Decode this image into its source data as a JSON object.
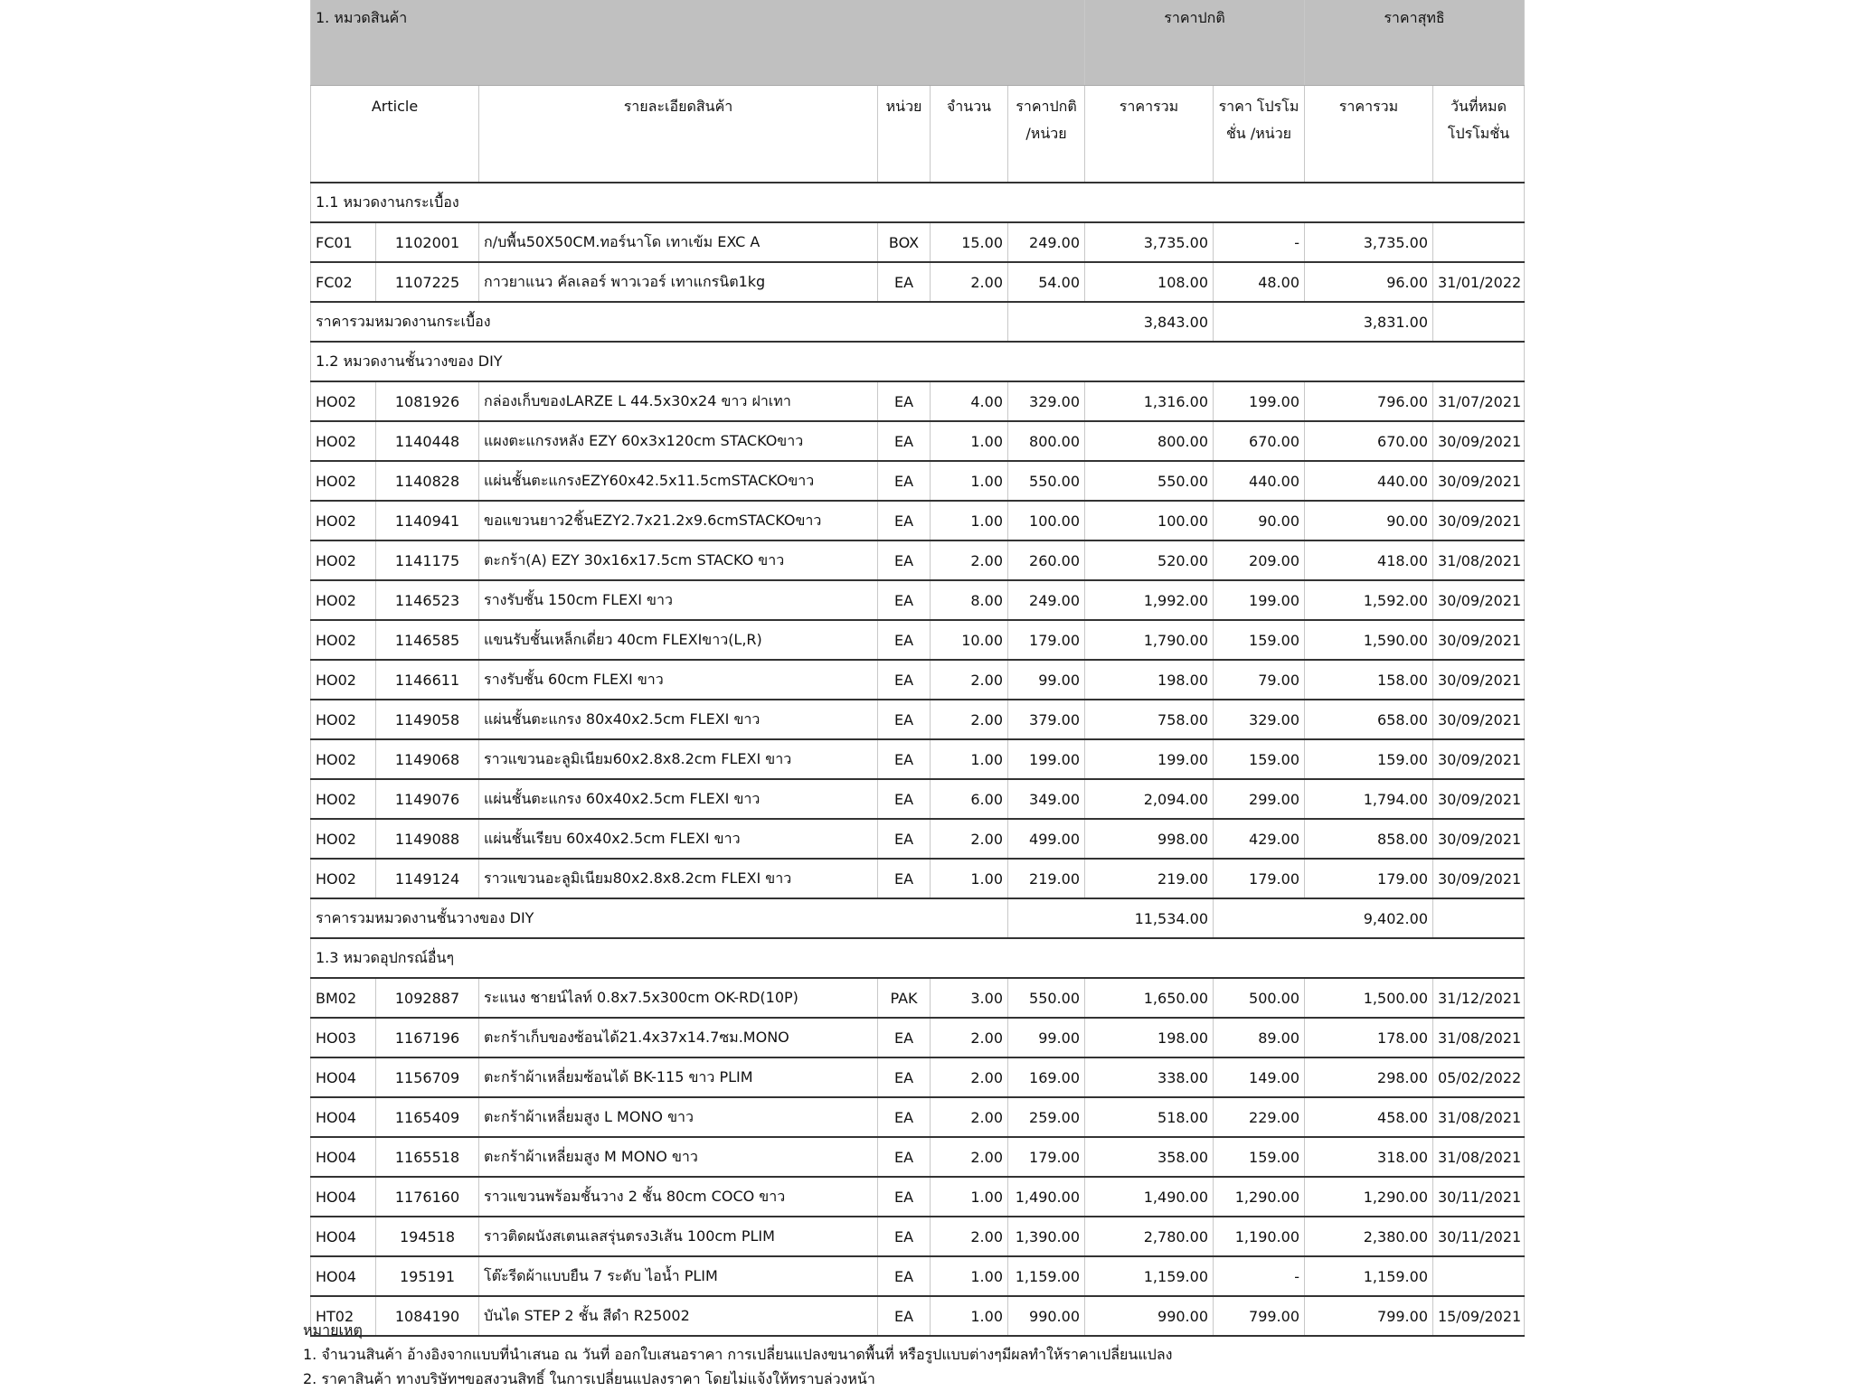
{
  "header": {
    "category": "1. หมวดสินค้า",
    "regular_price": "ราคาปกติ",
    "net_price": "ราคาสุทธิ"
  },
  "columns": {
    "article": "Article",
    "description": "รายละเอียดสินค้า",
    "unit": "หน่วย",
    "qty": "จำนวน",
    "unit_price": "ราคาปกติ /หน่วย",
    "total": "ราคารวม",
    "promo_price": "ราคา โปรโมชั่น /หน่วย",
    "net_total": "ราคารวม",
    "promo_end": "วันที่หมด โปรโมชั่น"
  },
  "sections": [
    {
      "title": "1.1 หมวดงานกระเบื้อง",
      "subtotal_label": "ราคารวมหมวดงานกระเบื้อง",
      "subtotal_regular": "3,843.00",
      "subtotal_net": "3,831.00",
      "items": [
        [
          "FC01",
          "1102001",
          "ก/บพื้น50X50CM.ทอร์นาโด เทาเข้ม EXC A",
          "BOX",
          "15.00",
          "249.00",
          "3,735.00",
          "-",
          "3,735.00",
          ""
        ],
        [
          "FC02",
          "1107225",
          "กาวยาแนว คัลเลอร์ พาวเวอร์ เทาแกรนิต1kg",
          "EA",
          "2.00",
          "54.00",
          "108.00",
          "48.00",
          "96.00",
          "31/01/2022"
        ]
      ]
    },
    {
      "title": "1.2 หมวดงานชั้นวางของ DIY",
      "subtotal_label": "ราคารวมหมวดงานชั้นวางของ DIY",
      "subtotal_regular": "11,534.00",
      "subtotal_net": "9,402.00",
      "items": [
        [
          "HO02",
          "1081926",
          "กล่องเก็บของLARZE L 44.5x30x24 ขาว ฝาเทา",
          "EA",
          "4.00",
          "329.00",
          "1,316.00",
          "199.00",
          "796.00",
          "31/07/2021"
        ],
        [
          "HO02",
          "1140448",
          "แผงตะแกรงหลัง EZY 60x3x120cm STACKOขาว",
          "EA",
          "1.00",
          "800.00",
          "800.00",
          "670.00",
          "670.00",
          "30/09/2021"
        ],
        [
          "HO02",
          "1140828",
          "แผ่นชั้นตะแกรงEZY60x42.5x11.5cmSTACKOขาว",
          "EA",
          "1.00",
          "550.00",
          "550.00",
          "440.00",
          "440.00",
          "30/09/2021"
        ],
        [
          "HO02",
          "1140941",
          "ขอแขวนยาว2ชิ้นEZY2.7x21.2x9.6cmSTACKOขาว",
          "EA",
          "1.00",
          "100.00",
          "100.00",
          "90.00",
          "90.00",
          "30/09/2021"
        ],
        [
          "HO02",
          "1141175",
          "ตะกร้า(A) EZY 30x16x17.5cm STACKO ขาว",
          "EA",
          "2.00",
          "260.00",
          "520.00",
          "209.00",
          "418.00",
          "31/08/2021"
        ],
        [
          "HO02",
          "1146523",
          "รางรับชั้น 150cm FLEXI ขาว",
          "EA",
          "8.00",
          "249.00",
          "1,992.00",
          "199.00",
          "1,592.00",
          "30/09/2021"
        ],
        [
          "HO02",
          "1146585",
          "แขนรับชั้นเหล็กเดี่ยว 40cm FLEXIขาว(L,R)",
          "EA",
          "10.00",
          "179.00",
          "1,790.00",
          "159.00",
          "1,590.00",
          "30/09/2021"
        ],
        [
          "HO02",
          "1146611",
          "รางรับชั้น 60cm FLEXI ขาว",
          "EA",
          "2.00",
          "99.00",
          "198.00",
          "79.00",
          "158.00",
          "30/09/2021"
        ],
        [
          "HO02",
          "1149058",
          "แผ่นชั้นตะแกรง 80x40x2.5cm FLEXI ขาว",
          "EA",
          "2.00",
          "379.00",
          "758.00",
          "329.00",
          "658.00",
          "30/09/2021"
        ],
        [
          "HO02",
          "1149068",
          "ราวแขวนอะลูมิเนียม60x2.8x8.2cm FLEXI ขาว",
          "EA",
          "1.00",
          "199.00",
          "199.00",
          "159.00",
          "159.00",
          "30/09/2021"
        ],
        [
          "HO02",
          "1149076",
          "แผ่นชั้นตะแกรง 60x40x2.5cm FLEXI ขาว",
          "EA",
          "6.00",
          "349.00",
          "2,094.00",
          "299.00",
          "1,794.00",
          "30/09/2021"
        ],
        [
          "HO02",
          "1149088",
          "แผ่นชั้นเรียบ 60x40x2.5cm FLEXI ขาว",
          "EA",
          "2.00",
          "499.00",
          "998.00",
          "429.00",
          "858.00",
          "30/09/2021"
        ],
        [
          "HO02",
          "1149124",
          "ราวแขวนอะลูมิเนียม80x2.8x8.2cm FLEXI ขาว",
          "EA",
          "1.00",
          "219.00",
          "219.00",
          "179.00",
          "179.00",
          "30/09/2021"
        ]
      ]
    },
    {
      "title": "1.3 หมวดอุปกรณ์อื่นๆ",
      "items": [
        [
          "BM02",
          "1092887",
          "ระแนง ชายน์ไลท์ 0.8x7.5x300cm OK-RD(10P)",
          "PAK",
          "3.00",
          "550.00",
          "1,650.00",
          "500.00",
          "1,500.00",
          "31/12/2021"
        ],
        [
          "HO03",
          "1167196",
          "ตะกร้าเก็บของซ้อนได้21.4x37x14.7ซม.MONO",
          "EA",
          "2.00",
          "99.00",
          "198.00",
          "89.00",
          "178.00",
          "31/08/2021"
        ],
        [
          "HO04",
          "1156709",
          "ตะกร้าผ้าเหลี่ยมซ้อนได้ BK-115 ขาว PLIM",
          "EA",
          "2.00",
          "169.00",
          "338.00",
          "149.00",
          "298.00",
          "05/02/2022"
        ],
        [
          "HO04",
          "1165409",
          "ตะกร้าผ้าเหลี่ยมสูง L MONO ขาว",
          "EA",
          "2.00",
          "259.00",
          "518.00",
          "229.00",
          "458.00",
          "31/08/2021"
        ],
        [
          "HO04",
          "1165518",
          "ตะกร้าผ้าเหลี่ยมสูง M MONO ขาว",
          "EA",
          "2.00",
          "179.00",
          "358.00",
          "159.00",
          "318.00",
          "31/08/2021"
        ],
        [
          "HO04",
          "1176160",
          "ราวแขวนพร้อมชั้นวาง 2 ชั้น 80cm COCO ขาว",
          "EA",
          "1.00",
          "1,490.00",
          "1,490.00",
          "1,290.00",
          "1,290.00",
          "30/11/2021"
        ],
        [
          "HO04",
          "194518",
          "ราวติดผนังสเตนเลสรุ่นตรง3เส้น 100cm PLIM",
          "EA",
          "2.00",
          "1,390.00",
          "2,780.00",
          "1,190.00",
          "2,380.00",
          "30/11/2021"
        ],
        [
          "HO04",
          "195191",
          "โต๊ะรีดผ้าแบบยืน 7 ระดับ ไอน้ำ PLIM",
          "EA",
          "1.00",
          "1,159.00",
          "1,159.00",
          "-",
          "1,159.00",
          ""
        ],
        [
          "HT02",
          "1084190",
          "บันได STEP 2 ชั้น สีดำ R25002",
          "EA",
          "1.00",
          "990.00",
          "990.00",
          "799.00",
          "799.00",
          "15/09/2021"
        ]
      ]
    }
  ],
  "notes": {
    "title": "หมายเหตุ",
    "items": [
      "1. จำนวนสินค้า อ้างอิงจากแบบที่นำเสนอ ณ วันที่ ออกใบเสนอราคา การเปลี่ยนแปลงขนาดพื้นที่ หรือรูปแบบต่างๆมีผลทำให้ราคาเปลี่ยนแปลง",
      "2. ราคาสินค้า ทางบริษัทฯขอสงวนสิทธิ์ ในการเปลี่ยนแปลงราคา โดยไม่แจ้งให้ทราบล่วงหน้า"
    ]
  }
}
